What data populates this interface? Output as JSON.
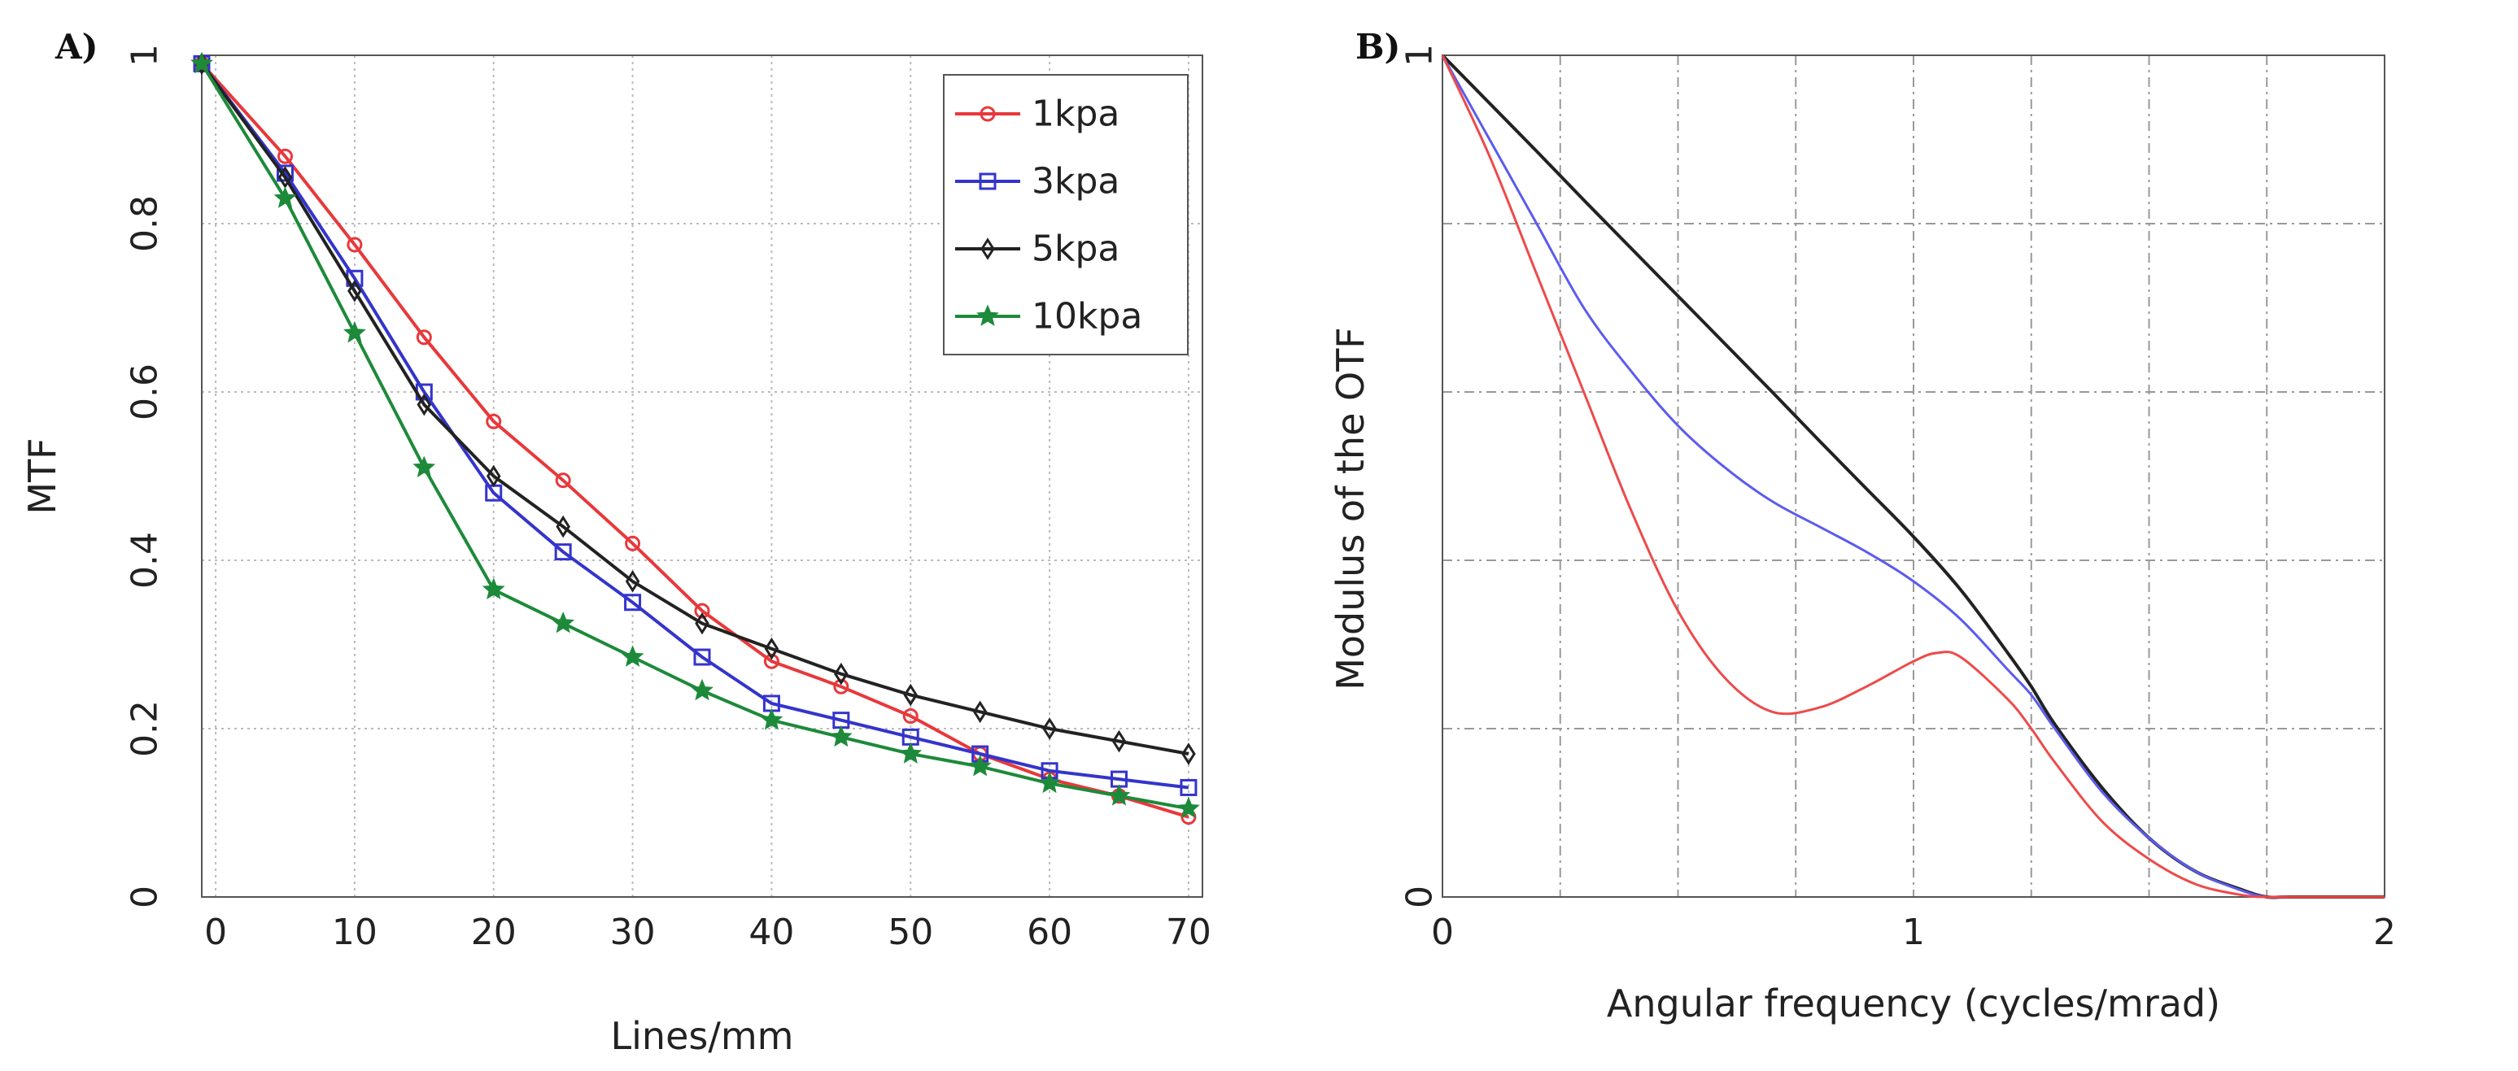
{
  "chart_data": [
    {
      "panel": "A)",
      "type": "line",
      "xlabel": "Lines/mm",
      "ylabel": "MTF",
      "xlim": [
        -1,
        71
      ],
      "ylim": [
        0,
        1
      ],
      "xticks": [
        0,
        10,
        20,
        30,
        40,
        50,
        60,
        70
      ],
      "xtick_labels": [
        "0",
        "10",
        "20",
        "30",
        "40",
        "50",
        "60",
        "70"
      ],
      "yticks": [
        0,
        0.2,
        0.4,
        0.6,
        0.8,
        1
      ],
      "ytick_labels": [
        "0",
        "0.2",
        "0.4",
        "0.6",
        "0.8",
        "1"
      ],
      "grid": true,
      "legend": "top-right",
      "x": [
        -1,
        5,
        10,
        15,
        20,
        25,
        30,
        35,
        40,
        45,
        50,
        55,
        60,
        65,
        70
      ],
      "series": [
        {
          "name": "1kpa",
          "color": "#e8383b",
          "marker": "circle",
          "values": [
            0.99,
            0.88,
            0.775,
            0.665,
            0.565,
            0.495,
            0.42,
            0.34,
            0.28,
            0.25,
            0.215,
            0.17,
            0.14,
            0.12,
            0.095
          ]
        },
        {
          "name": "3kpa",
          "color": "#3434cc",
          "marker": "square",
          "values": [
            0.99,
            0.86,
            0.735,
            0.6,
            0.48,
            0.41,
            0.35,
            0.285,
            0.23,
            0.21,
            0.19,
            0.17,
            0.15,
            0.14,
            0.13
          ]
        },
        {
          "name": "5kpa",
          "color": "#222222",
          "marker": "diamond",
          "values": [
            0.99,
            0.855,
            0.72,
            0.585,
            0.5,
            0.44,
            0.375,
            0.325,
            0.295,
            0.265,
            0.24,
            0.22,
            0.2,
            0.185,
            0.17
          ]
        },
        {
          "name": "10kpa",
          "color": "#1d8a3a",
          "marker": "star",
          "values": [
            0.99,
            0.83,
            0.67,
            0.51,
            0.365,
            0.325,
            0.285,
            0.245,
            0.21,
            0.19,
            0.17,
            0.155,
            0.135,
            0.12,
            0.105
          ]
        }
      ]
    },
    {
      "panel": "B)",
      "type": "line",
      "xlabel": "Angular frequency (cycles/mrad)",
      "ylabel": "Modulus of the OTF",
      "xlim": [
        0,
        2
      ],
      "ylim": [
        0,
        1
      ],
      "xticks": [
        0,
        1,
        2
      ],
      "xtick_labels": [
        "0",
        "1",
        "2"
      ],
      "yticks": [
        0,
        1
      ],
      "ytick_labels": [
        "0",
        "1"
      ],
      "xgrid_minor": [
        0.25,
        0.5,
        0.75,
        1.0,
        1.25,
        1.5,
        1.75
      ],
      "ygrid_minor": [
        0.2,
        0.4,
        0.6,
        0.8
      ],
      "grid": true,
      "series": [
        {
          "name": "black",
          "color": "#222222",
          "x": [
            0,
            0.1,
            0.2,
            0.3,
            0.4,
            0.5,
            0.6,
            0.7,
            0.8,
            0.9,
            1.0,
            1.1,
            1.2,
            1.25,
            1.3,
            1.4,
            1.5,
            1.6,
            1.7,
            1.75,
            1.8,
            2.0
          ],
          "y": [
            1.0,
            0.943,
            0.886,
            0.828,
            0.771,
            0.714,
            0.657,
            0.6,
            0.542,
            0.485,
            0.428,
            0.365,
            0.29,
            0.25,
            0.205,
            0.13,
            0.07,
            0.03,
            0.008,
            0.0,
            0.0,
            0.0
          ]
        },
        {
          "name": "blue",
          "color": "#5b5bef",
          "x": [
            0,
            0.1,
            0.2,
            0.3,
            0.4,
            0.5,
            0.6,
            0.7,
            0.8,
            0.9,
            1.0,
            1.1,
            1.2,
            1.25,
            1.3,
            1.4,
            1.5,
            1.6,
            1.7,
            1.75,
            1.8,
            2.0
          ],
          "y": [
            1.0,
            0.9,
            0.8,
            0.7,
            0.625,
            0.56,
            0.51,
            0.47,
            0.44,
            0.41,
            0.375,
            0.33,
            0.27,
            0.24,
            0.2,
            0.125,
            0.07,
            0.03,
            0.007,
            0.0,
            0.0,
            0.0
          ]
        },
        {
          "name": "red",
          "color": "#ee4a4a",
          "x": [
            0,
            0.1,
            0.2,
            0.3,
            0.4,
            0.5,
            0.6,
            0.7,
            0.8,
            0.9,
            1.0,
            1.05,
            1.1,
            1.2,
            1.25,
            1.3,
            1.4,
            1.5,
            1.6,
            1.7,
            1.75,
            1.8,
            2.0
          ],
          "y": [
            1.0,
            0.88,
            0.74,
            0.6,
            0.46,
            0.34,
            0.26,
            0.22,
            0.225,
            0.25,
            0.28,
            0.29,
            0.285,
            0.235,
            0.2,
            0.16,
            0.09,
            0.045,
            0.015,
            0.002,
            0.0,
            0.0,
            0.0
          ]
        }
      ]
    }
  ]
}
